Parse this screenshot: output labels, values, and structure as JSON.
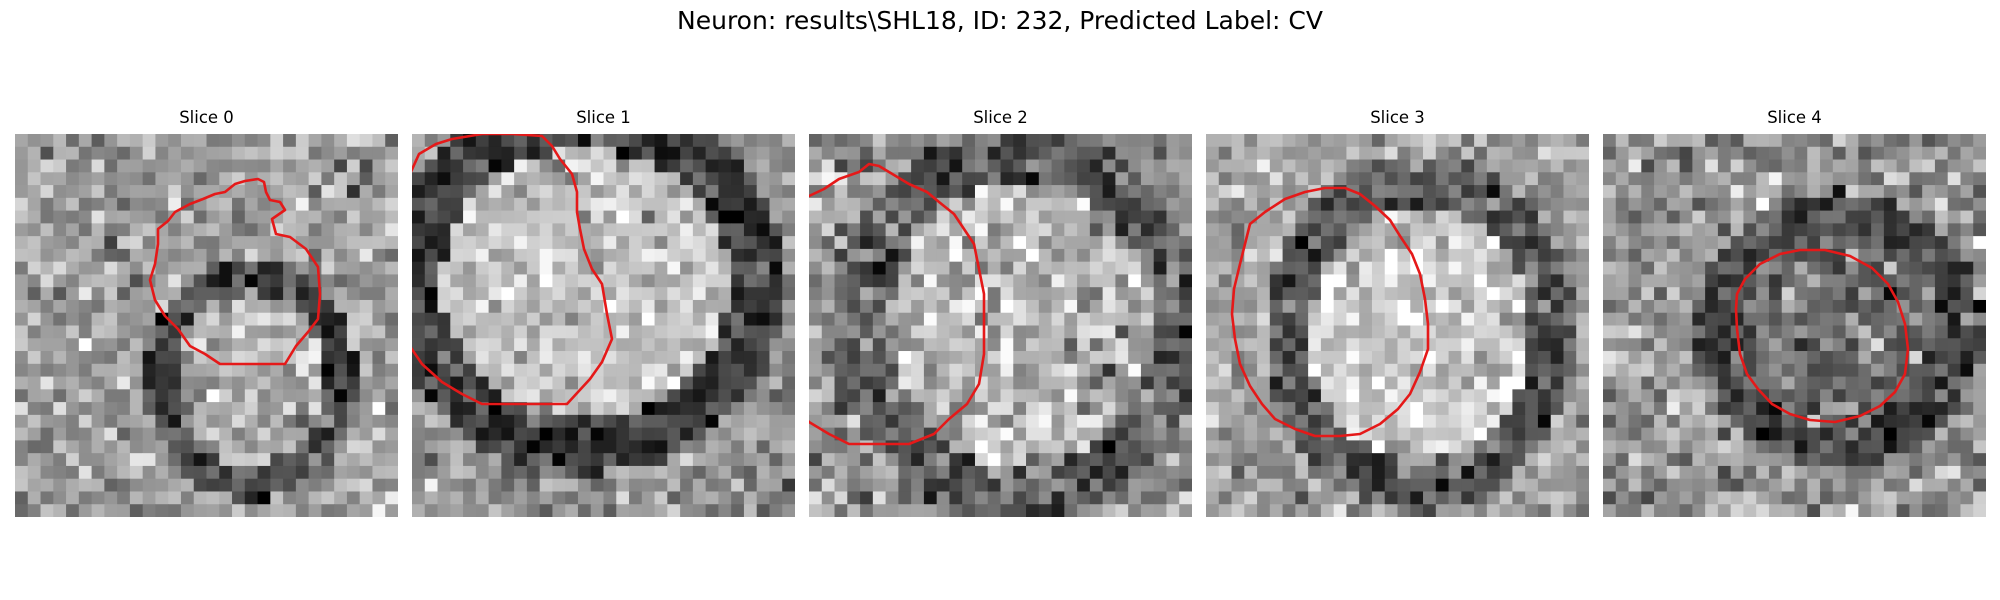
{
  "figure": {
    "title": "Neuron: results\\SHL18, ID: 232, Predicted Label: CV"
  },
  "slices": [
    {
      "label": "Slice 0",
      "contour_color": "#e51919"
    },
    {
      "label": "Slice 1",
      "contour_color": "#e51919"
    },
    {
      "label": "Slice 2",
      "contour_color": "#e51919"
    },
    {
      "label": "Slice 3",
      "contour_color": "#e51919"
    },
    {
      "label": "Slice 4",
      "contour_color": "#e51919"
    }
  ],
  "colors": {
    "contour": "#e51919",
    "background": "#ffffff"
  }
}
